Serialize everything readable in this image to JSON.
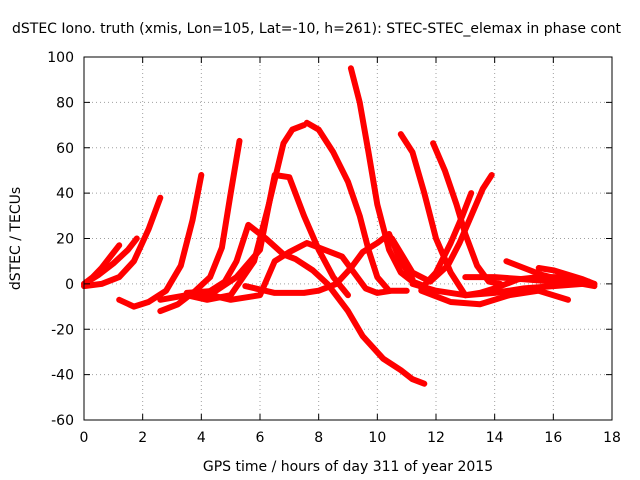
{
  "chart_data": {
    "type": "line",
    "title": "dSTEC Iono. truth (xmis, Lon=105, Lat=-10, h=261): STEC-STEC_elemax in phase cont",
    "xlabel": "GPS time / hours of day 311 of year 2015",
    "ylabel": "dSTEC  / TECUs",
    "xlim": [
      0,
      18
    ],
    "ylim": [
      -60,
      100
    ],
    "xticks": [
      0,
      2,
      4,
      6,
      8,
      10,
      12,
      14,
      16,
      18
    ],
    "yticks": [
      -60,
      -40,
      -20,
      0,
      20,
      40,
      60,
      80,
      100
    ],
    "xtick_labels": [
      "0",
      "2",
      "4",
      "6",
      "8",
      "10",
      "12",
      "14",
      "16",
      "18"
    ],
    "ytick_labels": [
      "-60",
      "-40",
      "-20",
      "0",
      "20",
      "40",
      "60",
      "80",
      "100"
    ],
    "grid": true,
    "colors": {
      "series": "#ff0000",
      "grid": "#a0a0a0",
      "axis": "#000000"
    },
    "series": [
      {
        "x": [
          0.0,
          0.3,
          0.6,
          0.9,
          1.2
        ],
        "y": [
          0,
          3,
          7,
          12,
          17
        ]
      },
      {
        "x": [
          0.0,
          0.5,
          1.0,
          1.5,
          1.8
        ],
        "y": [
          0,
          4,
          9,
          15,
          20
        ]
      },
      {
        "x": [
          0.0,
          0.6,
          1.2,
          1.7,
          2.2,
          2.6
        ],
        "y": [
          -1,
          0,
          3,
          10,
          24,
          38
        ]
      },
      {
        "x": [
          1.2,
          1.7,
          2.2,
          2.8,
          3.3,
          3.7,
          4.0
        ],
        "y": [
          -7,
          -10,
          -8,
          -3,
          8,
          28,
          48
        ]
      },
      {
        "x": [
          2.6,
          3.2,
          3.8,
          4.3,
          4.7,
          5.0,
          5.3
        ],
        "y": [
          -12,
          -9,
          -3,
          3,
          16,
          40,
          63
        ]
      },
      {
        "x": [
          2.6,
          3.5,
          4.2,
          5.0,
          5.8,
          6.3,
          6.8,
          7.1,
          7.5
        ],
        "y": [
          -7,
          -5,
          -7,
          -5,
          10,
          35,
          62,
          68,
          70
        ]
      },
      {
        "x": [
          3.6,
          4.2,
          4.8,
          5.2,
          5.6,
          6.2,
          6.8,
          7.2,
          7.8,
          8.3,
          9.0,
          9.5,
          10.2,
          10.8,
          11.2,
          11.6
        ],
        "y": [
          -5,
          -4,
          1,
          10,
          26,
          20,
          13,
          11,
          6,
          0,
          -12,
          -23,
          -33,
          -38,
          -42,
          -44
        ]
      },
      {
        "x": [
          3.5,
          4.5,
          5.2,
          6.0,
          6.5,
          7.0,
          7.5,
          8.0,
          8.5,
          9.0
        ],
        "y": [
          -4,
          -3,
          3,
          15,
          48,
          47,
          30,
          15,
          3,
          -5
        ]
      },
      {
        "x": [
          4.0,
          5.0,
          6.0,
          6.5,
          7.0,
          7.6,
          8.0,
          8.4,
          8.8,
          9.2,
          9.6,
          10.0,
          10.5,
          11.0
        ],
        "y": [
          -4,
          -7,
          -5,
          10,
          14,
          18,
          16,
          14,
          12,
          5,
          -2,
          -4,
          -3,
          -3
        ]
      },
      {
        "x": [
          5.5,
          6.5,
          7.5,
          8.0,
          8.6,
          9.1,
          9.5,
          10.0,
          10.4,
          10.8,
          11.2
        ],
        "y": [
          -1,
          -4,
          -4,
          -3,
          0,
          7,
          14,
          18,
          22,
          10,
          2
        ]
      },
      {
        "x": [
          7.6,
          8.0,
          8.5,
          9.0,
          9.4,
          9.7,
          10.0,
          10.4
        ],
        "y": [
          71,
          68,
          58,
          45,
          30,
          15,
          3,
          -3
        ]
      },
      {
        "x": [
          9.1,
          9.4,
          9.7,
          10.0,
          10.4,
          10.8,
          11.2,
          11.6
        ],
        "y": [
          95,
          80,
          58,
          35,
          15,
          5,
          1,
          -1
        ]
      },
      {
        "x": [
          10.8,
          11.2,
          11.6,
          12.0,
          12.5,
          13.0,
          13.5,
          14.0
        ],
        "y": [
          66,
          58,
          40,
          20,
          5,
          -5,
          -4,
          -2
        ]
      },
      {
        "x": [
          11.9,
          12.3,
          12.7,
          13.0,
          13.4,
          13.8,
          14.2
        ],
        "y": [
          62,
          50,
          35,
          22,
          8,
          1,
          0
        ]
      },
      {
        "x": [
          10.5,
          11.2,
          11.8,
          12.4,
          12.8,
          13.2,
          13.6,
          13.9
        ],
        "y": [
          20,
          5,
          1,
          8,
          18,
          30,
          42,
          48
        ]
      },
      {
        "x": [
          11.5,
          12.0,
          12.5,
          12.9,
          13.2
        ],
        "y": [
          -2,
          5,
          18,
          30,
          40
        ]
      },
      {
        "x": [
          11.2,
          12.0,
          13.0,
          14.0,
          15.0,
          16.0,
          17.0,
          17.4
        ],
        "y": [
          0,
          -3,
          -5,
          -4,
          -2,
          -1,
          0,
          0
        ]
      },
      {
        "x": [
          13.0,
          14.0,
          15.0,
          16.0,
          17.0,
          17.4
        ],
        "y": [
          3,
          3,
          2,
          1,
          0,
          -1
        ]
      },
      {
        "x": [
          11.5,
          12.5,
          13.5,
          14.5,
          15.5,
          16.5
        ],
        "y": [
          -3,
          -8,
          -9,
          -5,
          -3,
          -7
        ]
      },
      {
        "x": [
          14.4,
          15.0,
          15.6,
          16.2,
          16.8,
          17.2
        ],
        "y": [
          10,
          7,
          4,
          2,
          1,
          0
        ]
      },
      {
        "x": [
          15.5,
          16.0,
          16.5,
          17.0,
          17.4
        ],
        "y": [
          7,
          6,
          4,
          2,
          0
        ]
      },
      {
        "x": [
          14.0,
          14.8,
          15.5,
          16.2,
          16.8,
          17.2
        ],
        "y": [
          -2,
          2,
          3,
          3,
          2,
          1
        ]
      }
    ]
  }
}
